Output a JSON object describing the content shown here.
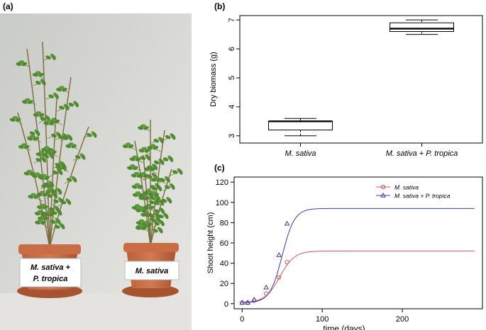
{
  "panel_a": {
    "label": "(a)",
    "pot_labels": [
      {
        "lines": [
          "M. sativa +",
          "P. tropica"
        ]
      },
      {
        "lines": [
          "M. sativa"
        ]
      }
    ]
  },
  "chart_data": [
    {
      "panel_label": "(b)",
      "type": "boxplot",
      "ylabel": "Dry biomass (g)",
      "ylim": [
        2.75,
        7.15
      ],
      "yticks": [
        3,
        4,
        5,
        6,
        7
      ],
      "categories": [
        "M. sativa",
        "M. sativa + P. tropica"
      ],
      "boxes": [
        {
          "name": "M. sativa",
          "whisker_low": 3.0,
          "q1": 3.2,
          "median": 3.5,
          "q3": 3.5,
          "whisker_high": 3.6
        },
        {
          "name": "M. sativa + P. tropica",
          "whisker_low": 6.5,
          "q1": 6.6,
          "median": 6.7,
          "q3": 6.9,
          "whisker_high": 7.0
        }
      ],
      "grid": false
    },
    {
      "panel_label": "(c)",
      "type": "line",
      "xlabel": "time (days)",
      "ylabel": "Shoot height (cm)",
      "xlim": [
        -10,
        300
      ],
      "ylim": [
        -5,
        125
      ],
      "xticks": [
        0,
        100,
        200
      ],
      "yticks": [
        0,
        20,
        40,
        60,
        80,
        100,
        120
      ],
      "legend_position": "top-right",
      "series": [
        {
          "name": "M. sativa",
          "color": "#d9534f",
          "marker": "circle",
          "x": [
            0,
            7,
            15,
            30,
            46,
            56
          ],
          "y": [
            1,
            1,
            3,
            10,
            26,
            41
          ],
          "curve": {
            "asymptote": 52,
            "midpoint": 47,
            "rate": 0.11,
            "base": 1
          }
        },
        {
          "name": "M. sativa + P. tropica",
          "color": "#3b3bb3",
          "marker": "triangle",
          "x": [
            0,
            7,
            15,
            30,
            46,
            56
          ],
          "y": [
            1,
            1,
            4,
            16,
            48,
            79
          ],
          "curve": {
            "asymptote": 94,
            "midpoint": 50,
            "rate": 0.13,
            "base": 1
          }
        }
      ],
      "grid": false
    }
  ]
}
